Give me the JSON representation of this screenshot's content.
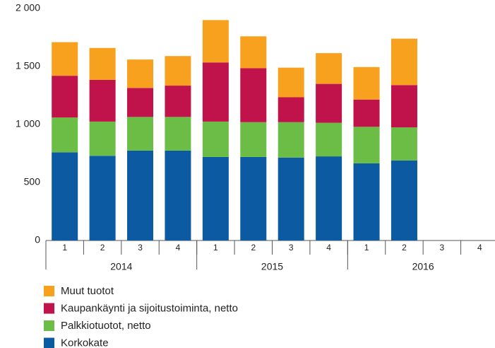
{
  "chart_data": {
    "type": "stacked-bar",
    "categories": [
      "1",
      "2",
      "3",
      "4",
      "1",
      "2",
      "3",
      "4",
      "1",
      "2",
      "3",
      "4"
    ],
    "groups": [
      "2014",
      "2015",
      "2016"
    ],
    "series": [
      {
        "name": "Korkokate",
        "color": "#0b5aa2",
        "values": [
          760,
          730,
          775,
          775,
          720,
          720,
          715,
          725,
          665,
          690,
          null,
          null
        ]
      },
      {
        "name": "Palkkiotuotot, netto",
        "color": "#6cbd45",
        "values": [
          300,
          295,
          290,
          290,
          305,
          300,
          305,
          290,
          315,
          285,
          null,
          null
        ]
      },
      {
        "name": "Kaupankäynti ja sijoitustoiminta, netto",
        "color": "#c1134b",
        "values": [
          360,
          360,
          250,
          270,
          510,
          465,
          215,
          335,
          235,
          365,
          null,
          null
        ]
      },
      {
        "name": "Muut tuotot",
        "color": "#f7a11e",
        "values": [
          290,
          275,
          245,
          255,
          365,
          275,
          255,
          265,
          280,
          400,
          null,
          null
        ]
      }
    ],
    "ylim": [
      0,
      2000
    ],
    "yticks": [
      0,
      500,
      {
        "value": 1000,
        "label": "1 000"
      },
      {
        "value": 1500,
        "label": "1 500"
      },
      {
        "value": 2000,
        "label": "2 000"
      }
    ],
    "grid": false
  }
}
